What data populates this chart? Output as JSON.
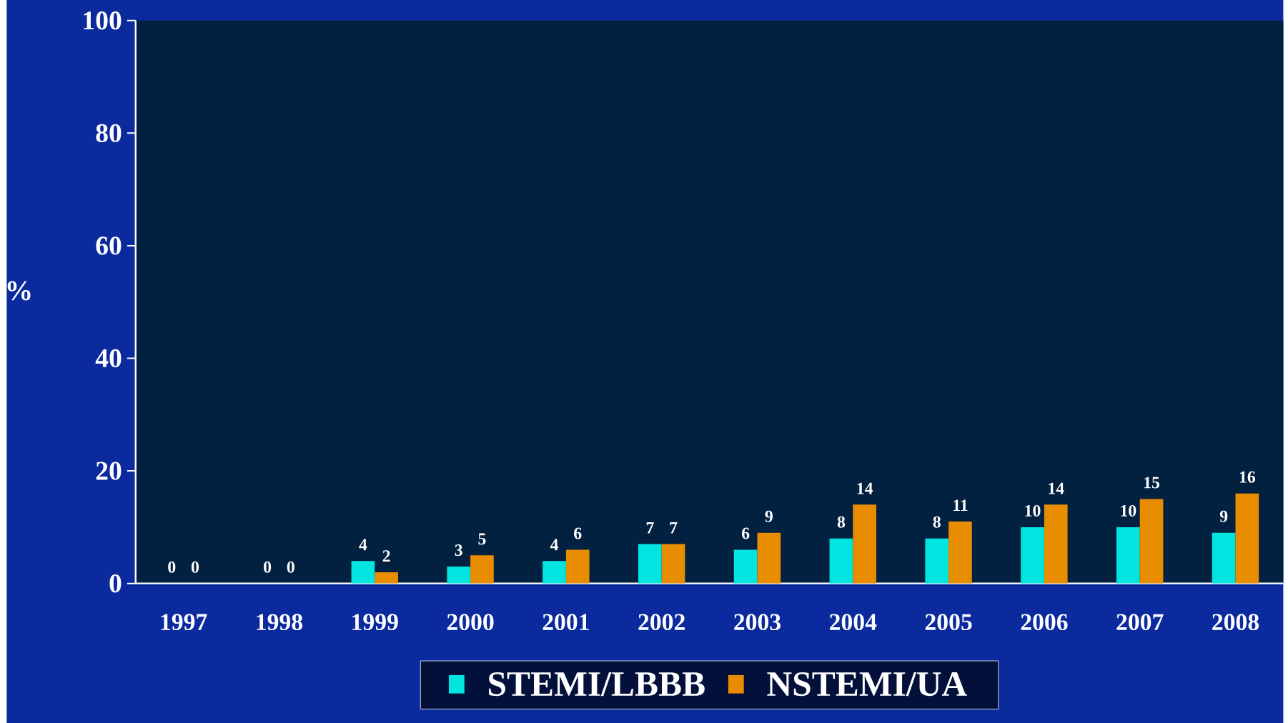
{
  "chart_data": {
    "type": "bar",
    "ylabel": "%",
    "categories": [
      "1997",
      "1998",
      "1999",
      "2000",
      "2001",
      "2002",
      "2003",
      "2004",
      "2005",
      "2006",
      "2007",
      "2008"
    ],
    "series": [
      {
        "name": "STEMI/LBBB",
        "color": "#00e5e0",
        "values": [
          0,
          0,
          4,
          3,
          4,
          7,
          6,
          8,
          8,
          10,
          10,
          9
        ]
      },
      {
        "name": "NSTEMI/UA",
        "color": "#e88c00",
        "values": [
          0,
          0,
          2,
          5,
          6,
          7,
          9,
          14,
          11,
          14,
          15,
          16
        ]
      }
    ],
    "ylim": [
      0,
      100
    ],
    "yticks": [
      0,
      20,
      40,
      60,
      80,
      100
    ],
    "grid": false,
    "legend": "bottom",
    "data_labels": true
  }
}
